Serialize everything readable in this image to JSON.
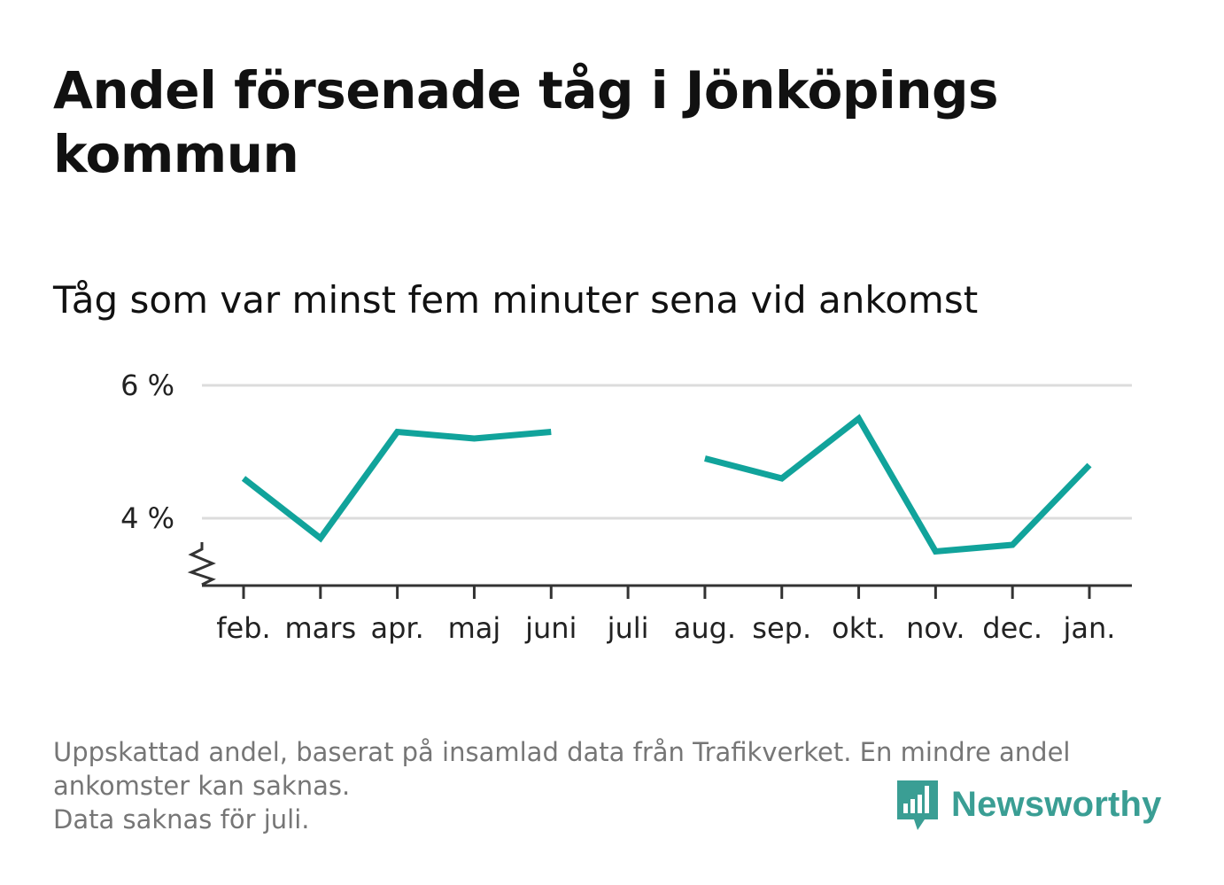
{
  "title": "Andel försenade tåg i Jönköpings kommun",
  "subtitle": "Tåg som var minst fem minuter sena vid ankomst",
  "chart_data": {
    "type": "line",
    "categories": [
      "feb.",
      "mars",
      "apr.",
      "maj",
      "juni",
      "juli",
      "aug.",
      "sep.",
      "okt.",
      "nov.",
      "dec.",
      "jan."
    ],
    "series": [
      {
        "values": [
          4.6,
          3.7,
          5.3,
          5.2,
          5.3,
          null,
          4.9,
          4.6,
          5.5,
          3.5,
          3.6,
          4.8
        ],
        "color": "#11a39b"
      }
    ],
    "y_ticks": [
      {
        "value": 4,
        "label": "4 %"
      },
      {
        "value": 6,
        "label": "6 %"
      }
    ],
    "ylim": [
      3,
      6
    ],
    "y_axis_break": true,
    "grid": true,
    "xlabel": "",
    "ylabel": ""
  },
  "footnote": {
    "line1": "Uppskattad andel, baserat på insamlad data från Trafikverket. En mindre andel ankomster kan saknas.",
    "line2": "Data saknas för juli."
  },
  "brand": {
    "name": "Newsworthy",
    "logo_icon": "bar-chart-speech-bubble-icon",
    "color": "#3a9e94"
  }
}
